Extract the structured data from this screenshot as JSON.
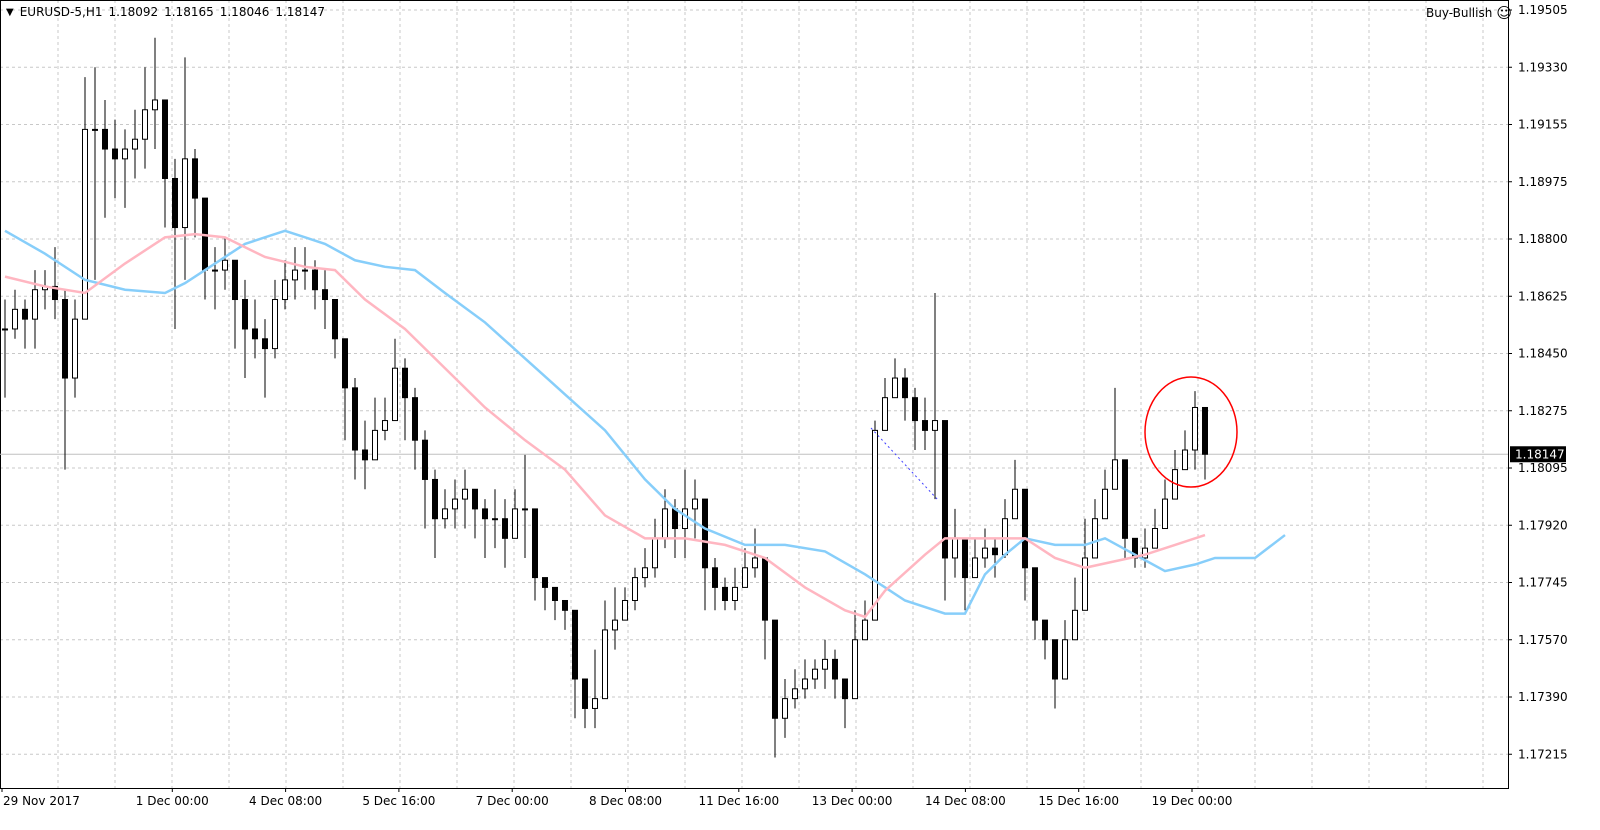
{
  "header": {
    "symbol": "EURUSD-5,H1",
    "open": "1.18092",
    "high": "1.18165",
    "low": "1.18046",
    "close": "1.18147"
  },
  "signal": {
    "label": "Buy-Bullish",
    "icon": "smiley-icon"
  },
  "current_price": "1.18147",
  "colors": {
    "fast_ma": "#ffb6c1",
    "slow_ma": "#87cefa",
    "annotation": "#ff0000",
    "price_label_bg": "#000000",
    "grid": "#c8c8c8"
  },
  "chart_data": {
    "type": "candlestick",
    "title": "",
    "xlabel": "",
    "ylabel": "",
    "ylim": [
      1.1714,
      1.19505
    ],
    "grid": true,
    "y_ticks": [
      "1.19505",
      "1.19330",
      "1.19155",
      "1.18975",
      "1.18800",
      "1.18625",
      "1.18450",
      "1.18275",
      "1.18095",
      "1.17920",
      "1.17745",
      "1.17570",
      "1.17390",
      "1.17215"
    ],
    "x_ticks": [
      "29 Nov 2017",
      "1 Dec 00:00",
      "4 Dec 08:00",
      "5 Dec 16:00",
      "7 Dec 00:00",
      "8 Dec 08:00",
      "11 Dec 16:00",
      "13 Dec 00:00",
      "14 Dec 08:00",
      "15 Dec 16:00",
      "19 Dec 00:00"
    ],
    "candles_hlc": [
      [
        1.1862,
        1.1832,
        1.1853
      ],
      [
        1.1865,
        1.185,
        1.1859
      ],
      [
        1.1862,
        1.1847,
        1.1856
      ],
      [
        1.1871,
        1.1847,
        1.1865
      ],
      [
        1.1871,
        1.1859,
        1.1866
      ],
      [
        1.1878,
        1.1856,
        1.1862
      ],
      [
        1.1865,
        1.181,
        1.1838
      ],
      [
        1.1862,
        1.1832,
        1.1856
      ],
      [
        1.193,
        1.1856,
        1.1914
      ],
      [
        1.1933,
        1.1868,
        1.1914
      ],
      [
        1.1923,
        1.1887,
        1.1908
      ],
      [
        1.1917,
        1.1893,
        1.1905
      ],
      [
        1.1914,
        1.189,
        1.1908
      ],
      [
        1.192,
        1.1899,
        1.1911
      ],
      [
        1.1933,
        1.1902,
        1.192
      ],
      [
        1.1942,
        1.1908,
        1.1923
      ],
      [
        1.1917,
        1.1884,
        1.1899
      ],
      [
        1.1905,
        1.1853,
        1.1884
      ],
      [
        1.1936,
        1.1868,
        1.1905
      ],
      [
        1.1908,
        1.1881,
        1.1893
      ],
      [
        1.1881,
        1.1862,
        1.1871
      ],
      [
        1.1878,
        1.1859,
        1.1871
      ],
      [
        1.1881,
        1.1865,
        1.1874
      ],
      [
        1.1874,
        1.1847,
        1.1862
      ],
      [
        1.1868,
        1.1838,
        1.1853
      ],
      [
        1.1862,
        1.1844,
        1.185
      ],
      [
        1.1856,
        1.1832,
        1.1847
      ],
      [
        1.1868,
        1.1844,
        1.1862
      ],
      [
        1.1874,
        1.1859,
        1.1868
      ],
      [
        1.1878,
        1.1862,
        1.1871
      ],
      [
        1.1878,
        1.1865,
        1.1871
      ],
      [
        1.1874,
        1.1859,
        1.1865
      ],
      [
        1.1871,
        1.1853,
        1.1862
      ],
      [
        1.1862,
        1.1844,
        1.185
      ],
      [
        1.185,
        1.1819,
        1.1835
      ],
      [
        1.1838,
        1.1807,
        1.1816
      ],
      [
        1.1825,
        1.1804,
        1.1813
      ],
      [
        1.1832,
        1.1813,
        1.1822
      ],
      [
        1.1832,
        1.1819,
        1.1825
      ],
      [
        1.185,
        1.1829,
        1.1841
      ],
      [
        1.1844,
        1.1819,
        1.1832
      ],
      [
        1.1835,
        1.181,
        1.1819
      ],
      [
        1.1822,
        1.1792,
        1.1807
      ],
      [
        1.181,
        1.1783,
        1.1795
      ],
      [
        1.1804,
        1.1792,
        1.1798
      ],
      [
        1.1807,
        1.1792,
        1.1801
      ],
      [
        1.181,
        1.1792,
        1.1804
      ],
      [
        1.1804,
        1.1789,
        1.1798
      ],
      [
        1.1801,
        1.1783,
        1.1795
      ],
      [
        1.1804,
        1.1786,
        1.1795
      ],
      [
        1.1801,
        1.178,
        1.1789
      ],
      [
        1.1804,
        1.1789,
        1.1798
      ],
      [
        1.18145,
        1.1783,
        1.1798
      ],
      [
        1.178,
        1.177,
        1.1777
      ],
      [
        1.1777,
        1.1767,
        1.1774
      ],
      [
        1.1774,
        1.1764,
        1.177
      ],
      [
        1.177,
        1.1761,
        1.1767
      ],
      [
        1.1758,
        1.1734,
        1.1746
      ],
      [
        1.1746,
        1.1731,
        1.1737
      ],
      [
        1.1755,
        1.1731,
        1.174
      ],
      [
        1.177,
        1.1746,
        1.1761
      ],
      [
        1.1774,
        1.1755,
        1.1764
      ],
      [
        1.1774,
        1.1764,
        1.177
      ],
      [
        1.178,
        1.1767,
        1.1777
      ],
      [
        1.1786,
        1.1774,
        1.178
      ],
      [
        1.1795,
        1.1777,
        1.1789
      ],
      [
        1.1804,
        1.1786,
        1.1798
      ],
      [
        1.1801,
        1.1783,
        1.1792
      ],
      [
        1.181,
        1.1783,
        1.1798
      ],
      [
        1.1807,
        1.1789,
        1.1801
      ],
      [
        1.1795,
        1.1767,
        1.178
      ],
      [
        1.1783,
        1.1767,
        1.1774
      ],
      [
        1.1777,
        1.1767,
        1.177
      ],
      [
        1.178,
        1.1767,
        1.1774
      ],
      [
        1.1786,
        1.1774,
        1.178
      ],
      [
        1.1792,
        1.1777,
        1.1783
      ],
      [
        1.1777,
        1.1752,
        1.1764
      ],
      [
        1.1755,
        1.1722,
        1.1734
      ],
      [
        1.1746,
        1.1728,
        1.174
      ],
      [
        1.1749,
        1.1737,
        1.1743
      ],
      [
        1.1752,
        1.174,
        1.1746
      ],
      [
        1.1752,
        1.1743,
        1.1749
      ],
      [
        1.1758,
        1.1743,
        1.1752
      ],
      [
        1.1755,
        1.174,
        1.1746
      ],
      [
        1.1746,
        1.1731,
        1.174
      ],
      [
        1.1767,
        1.174,
        1.1758
      ],
      [
        1.177,
        1.1758,
        1.1764
      ],
      [
        1.1825,
        1.1764,
        1.1822
      ],
      [
        1.1838,
        1.1822,
        1.1832
      ],
      [
        1.1844,
        1.1832,
        1.1838
      ],
      [
        1.1841,
        1.1825,
        1.1832
      ],
      [
        1.1835,
        1.1816,
        1.1825
      ],
      [
        1.1832,
        1.1816,
        1.1822
      ],
      [
        1.1864,
        1.1801,
        1.1825
      ],
      [
        1.1801,
        1.177,
        1.1783
      ],
      [
        1.1798,
        1.1777,
        1.1789
      ],
      [
        1.1789,
        1.1767,
        1.1777
      ],
      [
        1.1789,
        1.1777,
        1.1783
      ],
      [
        1.1792,
        1.178,
        1.1786
      ],
      [
        1.1789,
        1.1777,
        1.1784
      ],
      [
        1.1801,
        1.1783,
        1.1795
      ],
      [
        1.1813,
        1.1795,
        1.1804
      ],
      [
        1.1795,
        1.177,
        1.178
      ],
      [
        1.1777,
        1.1758,
        1.1764
      ],
      [
        1.1764,
        1.1752,
        1.1758
      ],
      [
        1.1755,
        1.1737,
        1.1746
      ],
      [
        1.1764,
        1.1752,
        1.1758
      ],
      [
        1.1777,
        1.1758,
        1.1767
      ],
      [
        1.1795,
        1.177,
        1.1783
      ],
      [
        1.1801,
        1.1789,
        1.1795
      ],
      [
        1.181,
        1.1798,
        1.1804
      ],
      [
        1.1835,
        1.1807,
        1.1813
      ],
      [
        1.1801,
        1.1783,
        1.1789
      ],
      [
        1.1789,
        1.178,
        1.1783
      ],
      [
        1.1792,
        1.178,
        1.1786
      ],
      [
        1.1798,
        1.1786,
        1.1792
      ],
      [
        1.1807,
        1.1792,
        1.1801
      ],
      [
        1.1816,
        1.1804,
        1.181
      ],
      [
        1.1822,
        1.181,
        1.1816
      ],
      [
        1.1834,
        1.181,
        1.1829
      ],
      [
        1.1819,
        1.1807,
        1.18147
      ]
    ],
    "series": [
      {
        "type": "line",
        "color": "#87cefa",
        "points": [
          [
            0,
            1.1883
          ],
          [
            4,
            1.1876
          ],
          [
            8,
            1.1868
          ],
          [
            12,
            1.1865
          ],
          [
            16,
            1.1864
          ],
          [
            18,
            1.1867
          ],
          [
            21,
            1.1873
          ],
          [
            24,
            1.1879
          ],
          [
            26,
            1.1881
          ],
          [
            28,
            1.1883
          ],
          [
            30,
            1.1881
          ],
          [
            32,
            1.1879
          ],
          [
            35,
            1.1874
          ],
          [
            38,
            1.1872
          ],
          [
            41,
            1.1871
          ],
          [
            44,
            1.1864
          ],
          [
            48,
            1.1855
          ],
          [
            52,
            1.1844
          ],
          [
            56,
            1.1833
          ],
          [
            60,
            1.1822
          ],
          [
            64,
            1.1807
          ],
          [
            67,
            1.1798
          ],
          [
            70,
            1.1792
          ],
          [
            74,
            1.1787
          ],
          [
            78,
            1.1787
          ],
          [
            82,
            1.1785
          ],
          [
            86,
            1.1778
          ],
          [
            90,
            1.177
          ],
          [
            94,
            1.1766
          ],
          [
            96,
            1.1766
          ],
          [
            98,
            1.1778
          ],
          [
            100,
            1.1784
          ],
          [
            102,
            1.1789
          ],
          [
            105,
            1.1787
          ],
          [
            108,
            1.1787
          ],
          [
            110,
            1.1789
          ],
          [
            113,
            1.1784
          ],
          [
            116,
            1.1779
          ],
          [
            119,
            1.1781
          ],
          [
            121,
            1.1783
          ],
          [
            125,
            1.1783
          ],
          [
            128,
            1.179
          ]
        ]
      },
      {
        "type": "line",
        "color": "#ffb6c1",
        "points": [
          [
            0,
            1.1869
          ],
          [
            4,
            1.1866
          ],
          [
            8,
            1.1864
          ],
          [
            12,
            1.1873
          ],
          [
            16,
            1.1881
          ],
          [
            19,
            1.1882
          ],
          [
            22,
            1.1881
          ],
          [
            26,
            1.1875
          ],
          [
            30,
            1.1872
          ],
          [
            33,
            1.1871
          ],
          [
            36,
            1.1862
          ],
          [
            40,
            1.1853
          ],
          [
            44,
            1.1841
          ],
          [
            48,
            1.1829
          ],
          [
            52,
            1.1819
          ],
          [
            56,
            1.181
          ],
          [
            60,
            1.1796
          ],
          [
            64,
            1.1789
          ],
          [
            68,
            1.1789
          ],
          [
            72,
            1.1787
          ],
          [
            76,
            1.1783
          ],
          [
            80,
            1.1774
          ],
          [
            84,
            1.1767
          ],
          [
            86,
            1.1765
          ],
          [
            88,
            1.1773
          ],
          [
            92,
            1.1784
          ],
          [
            94,
            1.1789
          ],
          [
            98,
            1.1789
          ],
          [
            102,
            1.1789
          ],
          [
            105,
            1.1783
          ],
          [
            108,
            1.178
          ],
          [
            111,
            1.1782
          ],
          [
            114,
            1.1784
          ],
          [
            117,
            1.1787
          ],
          [
            120,
            1.179
          ]
        ]
      }
    ]
  }
}
